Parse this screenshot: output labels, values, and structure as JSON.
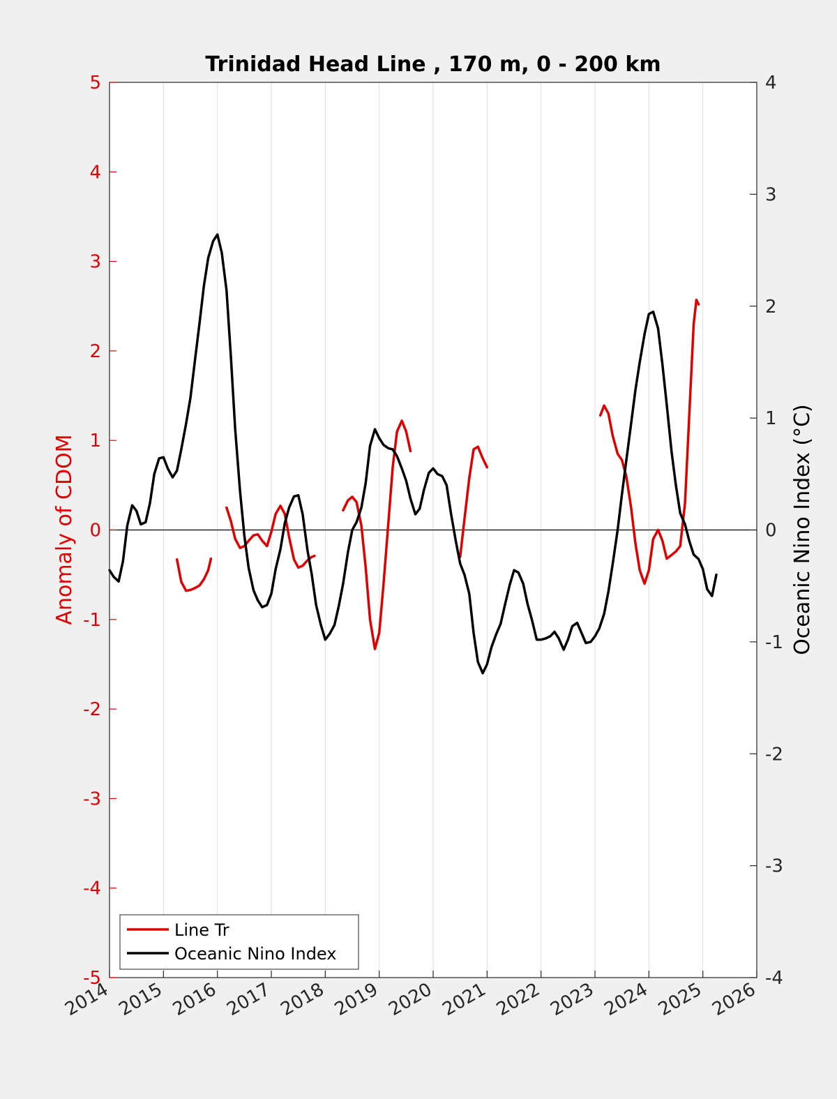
{
  "chart_data": {
    "type": "line",
    "title": "Trinidad Head Line , 170 m, 0 - 200 km",
    "ylabel_left": "Anomaly of CDOM",
    "ylabel_right": "Oceanic Nino Index (°C)",
    "xlim": [
      2014,
      2026
    ],
    "ylim_left": [
      -5,
      5
    ],
    "ylim_right": [
      -4,
      4
    ],
    "xticks": [
      "2014",
      "2015",
      "2016",
      "2017",
      "2018",
      "2019",
      "2020",
      "2021",
      "2022",
      "2023",
      "2024",
      "2025",
      "2026"
    ],
    "yticks_left": [
      "-5",
      "-4",
      "-3",
      "-2",
      "-1",
      "0",
      "1",
      "2",
      "3",
      "4",
      "5"
    ],
    "yticks_right": [
      "-4",
      "-3",
      "-2",
      "-1",
      "0",
      "1",
      "2",
      "3",
      "4"
    ],
    "grid": "vertical",
    "legend": "bottom-left",
    "colors": {
      "cdom": "#e00000",
      "oni": "#000000",
      "zero_line": "#000000"
    },
    "series": [
      {
        "name": "Line Tr",
        "axis": "left",
        "color": "#e00000",
        "segments": [
          [
            [
              2015.25,
              -0.33
            ],
            [
              2015.33,
              -0.58
            ],
            [
              2015.42,
              -0.68
            ],
            [
              2015.5,
              -0.67
            ],
            [
              2015.58,
              -0.65
            ],
            [
              2015.67,
              -0.62
            ],
            [
              2015.75,
              -0.55
            ],
            [
              2015.83,
              -0.45
            ],
            [
              2015.88,
              -0.32
            ]
          ],
          [
            [
              2016.17,
              0.25
            ],
            [
              2016.25,
              0.1
            ],
            [
              2016.33,
              -0.1
            ],
            [
              2016.42,
              -0.2
            ],
            [
              2016.5,
              -0.18
            ],
            [
              2016.58,
              -0.12
            ],
            [
              2016.67,
              -0.06
            ],
            [
              2016.75,
              -0.05
            ],
            [
              2016.83,
              -0.12
            ],
            [
              2016.92,
              -0.18
            ],
            [
              2017.0,
              -0.02
            ],
            [
              2017.08,
              0.18
            ],
            [
              2017.17,
              0.27
            ],
            [
              2017.25,
              0.18
            ],
            [
              2017.33,
              -0.08
            ],
            [
              2017.42,
              -0.33
            ],
            [
              2017.5,
              -0.42
            ],
            [
              2017.58,
              -0.4
            ],
            [
              2017.67,
              -0.34
            ],
            [
              2017.75,
              -0.3
            ],
            [
              2017.8,
              -0.29
            ]
          ],
          [
            [
              2018.33,
              0.22
            ],
            [
              2018.42,
              0.33
            ],
            [
              2018.5,
              0.37
            ],
            [
              2018.58,
              0.31
            ],
            [
              2018.67,
              0.05
            ],
            [
              2018.75,
              -0.42
            ],
            [
              2018.83,
              -1.0
            ],
            [
              2018.92,
              -1.33
            ],
            [
              2019.0,
              -1.15
            ],
            [
              2019.08,
              -0.6
            ],
            [
              2019.17,
              0.08
            ],
            [
              2019.25,
              0.7
            ],
            [
              2019.33,
              1.1
            ],
            [
              2019.42,
              1.22
            ],
            [
              2019.5,
              1.1
            ],
            [
              2019.58,
              0.88
            ]
          ],
          [
            [
              2020.5,
              -0.3
            ],
            [
              2020.58,
              0.12
            ],
            [
              2020.67,
              0.58
            ],
            [
              2020.75,
              0.9
            ],
            [
              2020.83,
              0.93
            ],
            [
              2020.92,
              0.8
            ],
            [
              2021.0,
              0.7
            ]
          ],
          [
            [
              2023.1,
              1.28
            ],
            [
              2023.17,
              1.39
            ],
            [
              2023.25,
              1.3
            ],
            [
              2023.33,
              1.05
            ],
            [
              2023.42,
              0.85
            ],
            [
              2023.5,
              0.78
            ],
            [
              2023.58,
              0.6
            ],
            [
              2023.67,
              0.25
            ],
            [
              2023.75,
              -0.15
            ],
            [
              2023.83,
              -0.45
            ],
            [
              2023.92,
              -0.6
            ],
            [
              2024.0,
              -0.45
            ],
            [
              2024.08,
              -0.1
            ],
            [
              2024.17,
              0.0
            ],
            [
              2024.25,
              -0.12
            ],
            [
              2024.33,
              -0.32
            ],
            [
              2024.42,
              -0.28
            ],
            [
              2024.5,
              -0.24
            ],
            [
              2024.58,
              -0.18
            ],
            [
              2024.67,
              0.3
            ],
            [
              2024.75,
              1.3
            ],
            [
              2024.83,
              2.3
            ],
            [
              2024.88,
              2.57
            ],
            [
              2024.92,
              2.52
            ]
          ]
        ]
      },
      {
        "name": "Oceanic Nino Index",
        "axis": "right",
        "color": "#000000",
        "segments": [
          [
            [
              2014.0,
              -0.36
            ],
            [
              2014.08,
              -0.42
            ],
            [
              2014.17,
              -0.46
            ],
            [
              2014.25,
              -0.28
            ],
            [
              2014.33,
              0.04
            ],
            [
              2014.42,
              0.22
            ],
            [
              2014.5,
              0.17
            ],
            [
              2014.58,
              0.05
            ],
            [
              2014.67,
              0.07
            ],
            [
              2014.75,
              0.24
            ],
            [
              2014.83,
              0.5
            ],
            [
              2014.92,
              0.64
            ],
            [
              2015.0,
              0.65
            ],
            [
              2015.08,
              0.55
            ],
            [
              2015.17,
              0.47
            ],
            [
              2015.25,
              0.53
            ],
            [
              2015.33,
              0.72
            ],
            [
              2015.42,
              0.95
            ],
            [
              2015.5,
              1.18
            ],
            [
              2015.58,
              1.5
            ],
            [
              2015.67,
              1.85
            ],
            [
              2015.75,
              2.18
            ],
            [
              2015.83,
              2.43
            ],
            [
              2015.92,
              2.58
            ],
            [
              2016.0,
              2.64
            ],
            [
              2016.08,
              2.48
            ],
            [
              2016.17,
              2.14
            ],
            [
              2016.25,
              1.55
            ],
            [
              2016.33,
              0.9
            ],
            [
              2016.42,
              0.35
            ],
            [
              2016.5,
              -0.05
            ],
            [
              2016.58,
              -0.34
            ],
            [
              2016.67,
              -0.54
            ],
            [
              2016.75,
              -0.63
            ],
            [
              2016.83,
              -0.69
            ],
            [
              2016.92,
              -0.67
            ],
            [
              2017.0,
              -0.57
            ],
            [
              2017.08,
              -0.35
            ],
            [
              2017.17,
              -0.17
            ],
            [
              2017.25,
              0.06
            ],
            [
              2017.33,
              0.2
            ],
            [
              2017.42,
              0.3
            ],
            [
              2017.5,
              0.31
            ],
            [
              2017.58,
              0.14
            ],
            [
              2017.67,
              -0.18
            ],
            [
              2017.75,
              -0.4
            ],
            [
              2017.83,
              -0.67
            ],
            [
              2017.92,
              -0.85
            ],
            [
              2018.0,
              -0.98
            ],
            [
              2018.08,
              -0.93
            ],
            [
              2018.17,
              -0.85
            ],
            [
              2018.25,
              -0.68
            ],
            [
              2018.33,
              -0.48
            ],
            [
              2018.42,
              -0.2
            ],
            [
              2018.5,
              0.0
            ],
            [
              2018.58,
              0.07
            ],
            [
              2018.67,
              0.2
            ],
            [
              2018.75,
              0.42
            ],
            [
              2018.83,
              0.75
            ],
            [
              2018.92,
              0.9
            ],
            [
              2019.0,
              0.82
            ],
            [
              2019.08,
              0.76
            ],
            [
              2019.17,
              0.73
            ],
            [
              2019.25,
              0.72
            ],
            [
              2019.33,
              0.66
            ],
            [
              2019.42,
              0.55
            ],
            [
              2019.5,
              0.44
            ],
            [
              2019.58,
              0.28
            ],
            [
              2019.67,
              0.14
            ],
            [
              2019.75,
              0.19
            ],
            [
              2019.83,
              0.36
            ],
            [
              2019.92,
              0.51
            ],
            [
              2020.0,
              0.55
            ],
            [
              2020.08,
              0.5
            ],
            [
              2020.17,
              0.48
            ],
            [
              2020.25,
              0.4
            ],
            [
              2020.33,
              0.15
            ],
            [
              2020.42,
              -0.1
            ],
            [
              2020.5,
              -0.3
            ],
            [
              2020.58,
              -0.4
            ],
            [
              2020.67,
              -0.57
            ],
            [
              2020.75,
              -0.92
            ],
            [
              2020.83,
              -1.18
            ],
            [
              2020.92,
              -1.28
            ],
            [
              2021.0,
              -1.2
            ],
            [
              2021.08,
              -1.05
            ],
            [
              2021.17,
              -0.93
            ],
            [
              2021.25,
              -0.84
            ],
            [
              2021.33,
              -0.67
            ],
            [
              2021.42,
              -0.49
            ],
            [
              2021.5,
              -0.36
            ],
            [
              2021.58,
              -0.38
            ],
            [
              2021.67,
              -0.48
            ],
            [
              2021.75,
              -0.66
            ],
            [
              2021.83,
              -0.8
            ],
            [
              2021.92,
              -0.98
            ],
            [
              2022.0,
              -0.98
            ],
            [
              2022.08,
              -0.97
            ],
            [
              2022.17,
              -0.95
            ],
            [
              2022.25,
              -0.91
            ],
            [
              2022.33,
              -0.97
            ],
            [
              2022.42,
              -1.07
            ],
            [
              2022.5,
              -0.98
            ],
            [
              2022.58,
              -0.86
            ],
            [
              2022.67,
              -0.83
            ],
            [
              2022.75,
              -0.92
            ],
            [
              2022.83,
              -1.01
            ],
            [
              2022.92,
              -1.0
            ],
            [
              2023.0,
              -0.95
            ],
            [
              2023.08,
              -0.88
            ],
            [
              2023.17,
              -0.75
            ],
            [
              2023.25,
              -0.55
            ],
            [
              2023.33,
              -0.3
            ],
            [
              2023.42,
              0.0
            ],
            [
              2023.5,
              0.32
            ],
            [
              2023.58,
              0.62
            ],
            [
              2023.67,
              0.95
            ],
            [
              2023.75,
              1.25
            ],
            [
              2023.83,
              1.5
            ],
            [
              2023.92,
              1.75
            ],
            [
              2024.0,
              1.93
            ],
            [
              2024.08,
              1.95
            ],
            [
              2024.17,
              1.8
            ],
            [
              2024.25,
              1.48
            ],
            [
              2024.33,
              1.12
            ],
            [
              2024.42,
              0.7
            ],
            [
              2024.5,
              0.4
            ],
            [
              2024.58,
              0.15
            ],
            [
              2024.67,
              0.05
            ],
            [
              2024.75,
              -0.1
            ],
            [
              2024.83,
              -0.22
            ],
            [
              2024.92,
              -0.26
            ],
            [
              2025.0,
              -0.35
            ],
            [
              2025.08,
              -0.53
            ],
            [
              2025.17,
              -0.59
            ],
            [
              2025.25,
              -0.4
            ]
          ]
        ]
      }
    ]
  },
  "legend": {
    "items": [
      {
        "label": "Line Tr",
        "color": "#e00000"
      },
      {
        "label": "Oceanic Nino Index",
        "color": "#000000"
      }
    ]
  }
}
